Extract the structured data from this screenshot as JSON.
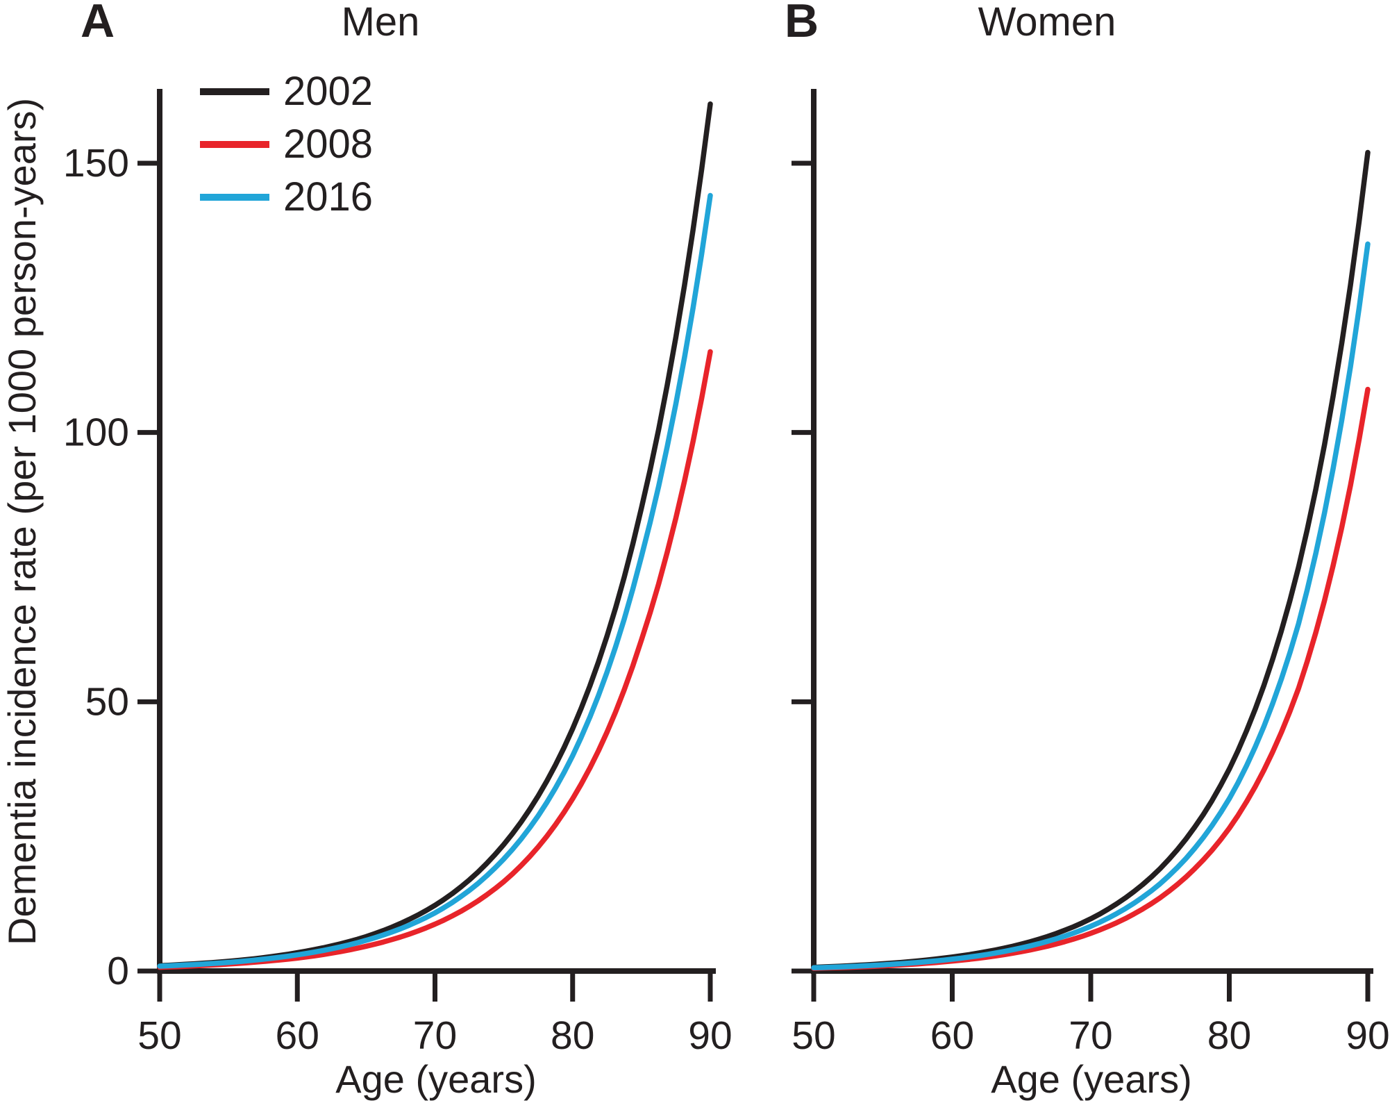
{
  "chart_data": [
    {
      "type": "line",
      "panel_label": "A",
      "title": "Men",
      "xlabel": "Age (years)",
      "ylabel": "Dementia incidence rate (per 1000 person-years)",
      "x": [
        50,
        55,
        60,
        65,
        70,
        75,
        80,
        85,
        90
      ],
      "xlim": [
        50,
        90
      ],
      "ylim": [
        0,
        165
      ],
      "xticks": [
        50,
        60,
        70,
        80,
        90
      ],
      "yticks": [
        0,
        50,
        100,
        150
      ],
      "show_ytick_labels": true,
      "grid": false,
      "legend_position": "top-left-inside",
      "series": [
        {
          "name": "2002",
          "color": "#231f20",
          "values": [
            1.0,
            1.8,
            3.4,
            6.4,
            12.2,
            23.5,
            45,
            86,
            161
          ]
        },
        {
          "name": "2008",
          "color": "#e8242a",
          "values": [
            0.7,
            1.3,
            2.4,
            4.6,
            8.7,
            16.6,
            32,
            61.5,
            115
          ]
        },
        {
          "name": "2016",
          "color": "#21a5d8",
          "values": [
            0.9,
            1.6,
            3.0,
            5.7,
            10.8,
            20.8,
            40,
            77,
            144
          ]
        }
      ]
    },
    {
      "type": "line",
      "panel_label": "B",
      "title": "Women",
      "xlabel": "Age (years)",
      "ylabel": "",
      "x": [
        50,
        55,
        60,
        65,
        70,
        75,
        80,
        85,
        90
      ],
      "xlim": [
        50,
        90
      ],
      "ylim": [
        0,
        165
      ],
      "xticks": [
        50,
        60,
        70,
        80,
        90
      ],
      "yticks": [
        0,
        50,
        100,
        150
      ],
      "show_ytick_labels": false,
      "grid": false,
      "legend_position": "none",
      "series": [
        {
          "name": "2002",
          "color": "#231f20",
          "values": [
            0.7,
            1.35,
            2.6,
            5.0,
            9.7,
            19.0,
            37.5,
            75,
            152
          ]
        },
        {
          "name": "2008",
          "color": "#e8242a",
          "values": [
            0.5,
            0.95,
            1.85,
            3.6,
            7.0,
            13.6,
            26.5,
            52.5,
            108
          ]
        },
        {
          "name": "2016",
          "color": "#21a5d8",
          "values": [
            0.6,
            1.15,
            2.2,
            4.3,
            8.3,
            16.2,
            32,
            64.5,
            135
          ]
        }
      ]
    }
  ]
}
